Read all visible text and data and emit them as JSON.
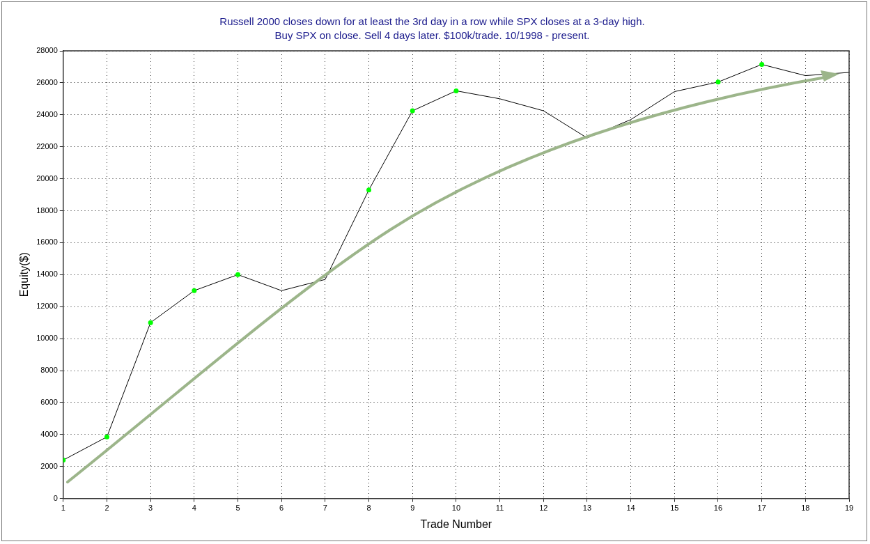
{
  "chart_data": {
    "type": "line",
    "title": "Russell 2000 closes down for at least the 3rd day in a row while SPX closes at a 3-day high.",
    "subtitle": "Buy SPX on close. Sell 4 days later. $100k/trade. 10/1998 - present.",
    "xlabel": "Trade Number",
    "ylabel": "Equity($)",
    "x": [
      1,
      2,
      3,
      4,
      5,
      6,
      7,
      8,
      9,
      10,
      11,
      12,
      13,
      14,
      15,
      16,
      17,
      18,
      19
    ],
    "series": [
      {
        "type": "line",
        "color": "#000000",
        "marker": "none",
        "values": [
          2400,
          3850,
          11000,
          13000,
          14000,
          13000,
          13700,
          19300,
          24250,
          25500,
          25000,
          24250,
          22550,
          23700,
          25450,
          26050,
          27150,
          26450,
          26650
        ]
      },
      {
        "type": "scatter",
        "color": "#00ff00",
        "marker": "circle",
        "x": [
          1,
          2,
          3,
          4,
          5,
          8,
          9,
          10,
          16,
          17
        ],
        "values": [
          2400,
          3850,
          11000,
          13000,
          14000,
          19300,
          24250,
          25500,
          26050,
          27150
        ]
      }
    ],
    "xlim": [
      1,
      19
    ],
    "xticks": [
      1,
      2,
      3,
      4,
      5,
      6,
      7,
      8,
      9,
      10,
      11,
      12,
      13,
      14,
      15,
      16,
      17,
      18,
      19
    ],
    "ylim": [
      0,
      28000
    ],
    "yticks": [
      0,
      2000,
      4000,
      6000,
      8000,
      10000,
      12000,
      14000,
      16000,
      18000,
      20000,
      22000,
      24000,
      26000,
      28000
    ],
    "grid": true,
    "legend": false
  }
}
